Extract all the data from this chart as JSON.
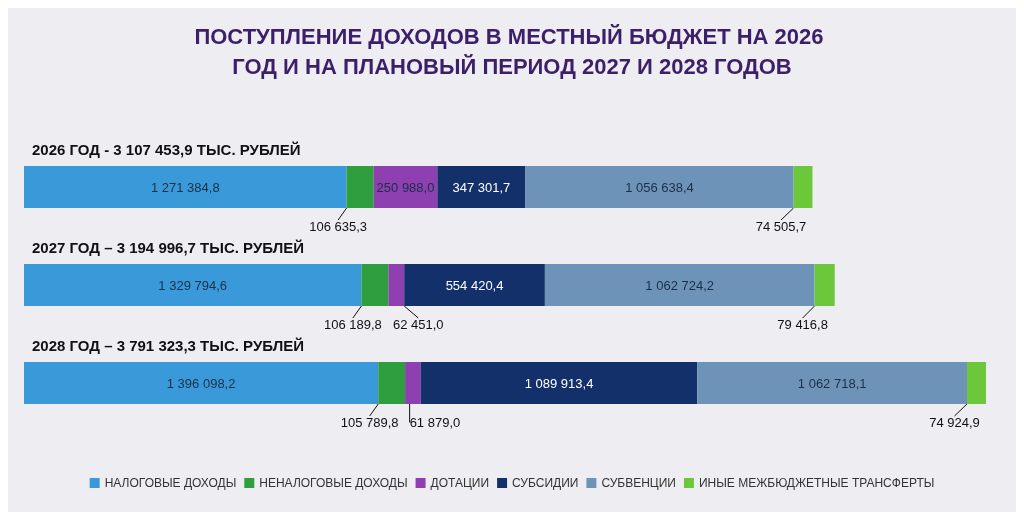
{
  "chart_data": {
    "type": "bar",
    "orientation": "horizontal",
    "stacked": true,
    "title": "ПОСТУПЛЕНИЕ ДОХОДОВ В МЕСТНЫЙ БЮДЖЕТ НА 2026 ГОД И НА ПЛАНОВЫЙ ПЕРИОД 2027 И 2028 ГОДОВ",
    "categories": [
      "2026 ГОД - 3 107 453,9 ТЫС. РУБЛЕЙ",
      "2027 ГОД – 3 194 996,7 ТЫС. РУБЛЕЙ",
      "2028 ГОД – 3 791 323,3 ТЫС. РУБЛЕЙ"
    ],
    "series": [
      {
        "name": "НАЛОГОВЫЕ ДОХОДЫ",
        "color": "#3a9ad9",
        "values": [
          1271384.8,
          1329794.6,
          1396098.2
        ],
        "value_labels": [
          "1 271 384,8",
          "1 329 794,6",
          "1 396 098,2"
        ]
      },
      {
        "name": "НЕНАЛОГОВЫЕ ДОХОДЫ",
        "color": "#2e9e3e",
        "values": [
          106635.3,
          106189.8,
          105789.8
        ],
        "value_labels": [
          "106 635,3",
          "106 189,8",
          "105 789,8"
        ]
      },
      {
        "name": "ДОТАЦИИ",
        "color": "#8e3fb0",
        "values": [
          250988.0,
          62451.0,
          61879.0
        ],
        "value_labels": [
          "250 988,0",
          "62 451,0",
          "61 879,0"
        ]
      },
      {
        "name": "СУБСИДИИ",
        "color": "#14306a",
        "values": [
          347301.7,
          554420.4,
          1089913.4
        ],
        "value_labels": [
          "347 301,7",
          "554 420,4",
          "1 089 913,4"
        ]
      },
      {
        "name": "СУБВЕНЦИИ",
        "color": "#6e93b8",
        "values": [
          1056638.4,
          1062724.2,
          1062718.1
        ],
        "value_labels": [
          "1 056 638,4",
          "1 062 724,2",
          "1 062 718,1"
        ]
      },
      {
        "name": "ИНЫЕ МЕЖБЮДЖЕТНЫЕ ТРАНСФЕРТЫ",
        "color": "#6cc83a",
        "values": [
          74505.7,
          79416.8,
          74924.9
        ],
        "value_labels": [
          "74 505,7",
          "79 416,8",
          "74 924,9"
        ]
      }
    ],
    "legend": "bottom",
    "grid": false,
    "tick_labels": "y"
  }
}
